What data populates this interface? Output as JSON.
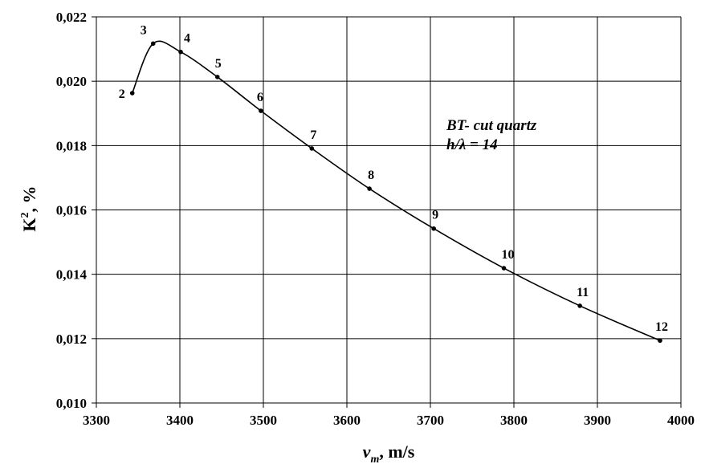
{
  "chart_data": {
    "type": "line",
    "x": [
      3343,
      3368,
      3401,
      3445,
      3497,
      3558,
      3627,
      3704,
      3788,
      3879,
      3975
    ],
    "y": [
      0.01963,
      0.02117,
      0.02091,
      0.02013,
      0.01908,
      0.01791,
      0.01666,
      0.01542,
      0.01419,
      0.01302,
      0.01194
    ],
    "point_labels": [
      "2",
      "3",
      "4",
      "5",
      "6",
      "7",
      "8",
      "9",
      "10",
      "11",
      "12"
    ],
    "xlim": [
      3300,
      4000
    ],
    "ylim": [
      0.01,
      0.022
    ],
    "x_ticks": [
      3300,
      3400,
      3500,
      3600,
      3700,
      3800,
      3900,
      4000
    ],
    "x_tick_labels": [
      "3300",
      "3400",
      "3500",
      "3600",
      "3700",
      "3800",
      "3900",
      "4000"
    ],
    "y_ticks": [
      0.01,
      0.012,
      0.014,
      0.016,
      0.018,
      0.02,
      0.022
    ],
    "y_tick_labels": [
      "0,010",
      "0,012",
      "0,014",
      "0,016",
      "0,018",
      "0,020",
      "0,022"
    ],
    "xlabel": {
      "main": "v",
      "sub": "m",
      "rest": ", m/s"
    },
    "ylabel": {
      "main": "K",
      "sup": "2",
      "rest": ", %"
    },
    "annotations": [
      "BT- cut quartz",
      "h/λ = 14"
    ],
    "grid": true,
    "legend": "none",
    "line_color": "#000000",
    "grid_color": "#000000"
  }
}
